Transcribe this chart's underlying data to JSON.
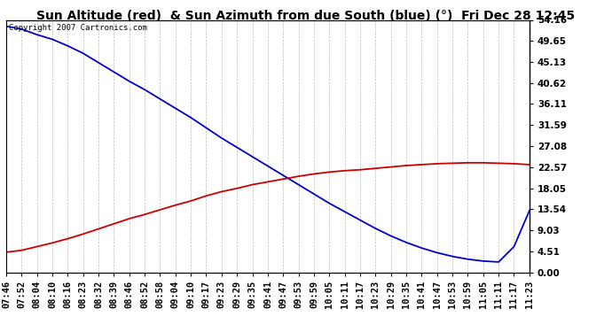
{
  "title": "Sun Altitude (red)  & Sun Azimuth from due South (blue) (°)  Fri Dec 28 12:45",
  "copyright_text": "Copyright 2007 Cartronics.com",
  "yticks": [
    0.0,
    4.51,
    9.03,
    13.54,
    18.05,
    22.57,
    27.08,
    31.59,
    36.11,
    40.62,
    45.13,
    49.65,
    54.16
  ],
  "xlabels": [
    "07:46",
    "07:52",
    "08:04",
    "08:10",
    "08:16",
    "08:23",
    "08:32",
    "08:39",
    "08:46",
    "08:52",
    "08:58",
    "09:04",
    "09:10",
    "09:17",
    "09:23",
    "09:29",
    "09:35",
    "09:41",
    "09:47",
    "09:53",
    "09:59",
    "10:05",
    "10:11",
    "10:17",
    "10:23",
    "10:29",
    "10:35",
    "10:41",
    "10:47",
    "10:53",
    "10:59",
    "11:05",
    "11:11",
    "11:17",
    "11:23"
  ],
  "blue_y": [
    52.8,
    52.2,
    51.0,
    50.0,
    48.6,
    47.0,
    45.0,
    43.0,
    41.0,
    39.2,
    37.2,
    35.2,
    33.2,
    31.0,
    28.8,
    26.8,
    24.8,
    22.8,
    20.8,
    18.8,
    16.8,
    14.8,
    13.0,
    11.2,
    9.4,
    7.8,
    6.4,
    5.2,
    4.2,
    3.4,
    2.8,
    2.4,
    2.2,
    5.5,
    13.2
  ],
  "red_y": [
    4.3,
    4.7,
    5.5,
    6.3,
    7.2,
    8.2,
    9.3,
    10.4,
    11.5,
    12.4,
    13.4,
    14.4,
    15.3,
    16.4,
    17.3,
    18.0,
    18.8,
    19.4,
    20.0,
    20.6,
    21.1,
    21.5,
    21.8,
    22.0,
    22.3,
    22.6,
    22.9,
    23.1,
    23.3,
    23.4,
    23.5,
    23.5,
    23.4,
    23.3,
    23.1
  ],
  "ymin": 0.0,
  "ymax": 54.16,
  "blue_color": "#0000cc",
  "red_color": "#cc0000",
  "bg_color": "#ffffff",
  "grid_color": "#bbbbbb",
  "title_fontsize": 10,
  "tick_fontsize": 7.5,
  "copyright_fontsize": 6.5
}
